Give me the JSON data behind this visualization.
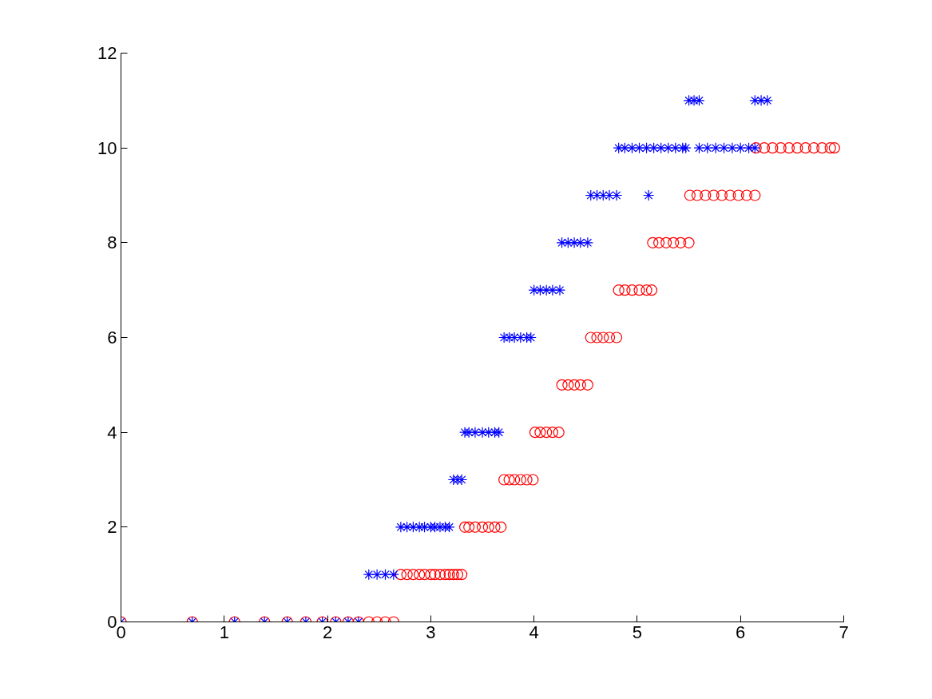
{
  "chart_data": {
    "type": "scatter",
    "xlim": [
      0,
      7
    ],
    "ylim": [
      0,
      12
    ],
    "xticks": [
      0,
      1,
      2,
      3,
      4,
      5,
      6,
      7
    ],
    "yticks": [
      0,
      2,
      4,
      6,
      8,
      10,
      12
    ],
    "grid": false,
    "series": [
      {
        "color": "#ff0000",
        "marker": "circle",
        "x": [
          0,
          0.69,
          1.1,
          1.39,
          1.61,
          1.79,
          1.95,
          2.08,
          2.2,
          2.3,
          2.4,
          2.48,
          2.56,
          2.64,
          2.71,
          2.77,
          2.83,
          2.89,
          2.94,
          3.0,
          3.04,
          3.09,
          3.14,
          3.18,
          3.22,
          3.26,
          3.3,
          3.33,
          3.37,
          3.43,
          3.5,
          3.56,
          3.62,
          3.68,
          3.71,
          3.76,
          3.81,
          3.87,
          3.93,
          3.99,
          4.01,
          4.06,
          4.12,
          4.18,
          4.24,
          4.27,
          4.33,
          4.39,
          4.45,
          4.52,
          4.55,
          4.61,
          4.67,
          4.73,
          4.8,
          4.82,
          4.88,
          4.95,
          5.02,
          5.09,
          5.14,
          5.15,
          5.21,
          5.28,
          5.35,
          5.42,
          5.5,
          5.51,
          5.58,
          5.66,
          5.74,
          5.82,
          5.9,
          5.98,
          6.06,
          6.14,
          6.15,
          6.23,
          6.31,
          6.39,
          6.47,
          6.55,
          6.63,
          6.71,
          6.79,
          6.87,
          6.91
        ],
        "values": [
          0,
          0,
          0,
          0,
          0,
          0,
          0,
          0,
          0,
          0,
          0,
          0,
          0,
          0,
          1,
          1,
          1,
          1,
          1,
          1,
          1,
          1,
          1,
          1,
          1,
          1,
          1,
          2,
          2,
          2,
          2,
          2,
          2,
          2,
          3,
          3,
          3,
          3,
          3,
          3,
          4,
          4,
          4,
          4,
          4,
          5,
          5,
          5,
          5,
          5,
          6,
          6,
          6,
          6,
          6,
          7,
          7,
          7,
          7,
          7,
          7,
          8,
          8,
          8,
          8,
          8,
          8,
          9,
          9,
          9,
          9,
          9,
          9,
          9,
          9,
          9,
          10,
          10,
          10,
          10,
          10,
          10,
          10,
          10,
          10,
          10,
          10
        ]
      },
      {
        "color": "#0000ff",
        "marker": "cross",
        "x": [
          0,
          0.69,
          1.1,
          1.39,
          1.61,
          1.79,
          1.95,
          2.08,
          2.2,
          2.3,
          2.4,
          2.48,
          2.56,
          2.64,
          2.71,
          2.77,
          2.83,
          2.89,
          2.94,
          3.0,
          3.04,
          3.09,
          3.14,
          3.18,
          3.22,
          3.26,
          3.3,
          3.33,
          3.37,
          3.43,
          3.5,
          3.56,
          3.62,
          3.66,
          3.71,
          3.76,
          3.81,
          3.87,
          3.93,
          3.97,
          4.0,
          4.06,
          4.12,
          4.18,
          4.25,
          4.27,
          4.33,
          4.39,
          4.45,
          4.52,
          4.55,
          4.61,
          4.67,
          4.73,
          4.8,
          4.82,
          4.88,
          4.95,
          5.02,
          5.09,
          5.11,
          5.16,
          5.23,
          5.3,
          5.37,
          5.44,
          5.47,
          5.5,
          5.55,
          5.6,
          5.6,
          5.68,
          5.76,
          5.84,
          5.92,
          6.0,
          6.08,
          6.14,
          6.14,
          6.2,
          6.26
        ],
        "values": [
          0,
          0,
          0,
          0,
          0,
          0,
          0,
          0,
          0,
          0,
          1,
          1,
          1,
          1,
          2,
          2,
          2,
          2,
          2,
          2,
          2,
          2,
          2,
          2,
          3,
          3,
          3,
          4,
          4,
          4,
          4,
          4,
          4,
          4,
          6,
          6,
          6,
          6,
          6,
          6,
          7,
          7,
          7,
          7,
          7,
          8,
          8,
          8,
          8,
          8,
          9,
          9,
          9,
          9,
          9,
          10,
          10,
          10,
          10,
          10,
          9,
          10,
          10,
          10,
          10,
          10,
          10,
          11,
          11,
          11,
          10,
          10,
          10,
          10,
          10,
          10,
          10,
          10,
          11,
          11,
          11
        ]
      }
    ]
  }
}
